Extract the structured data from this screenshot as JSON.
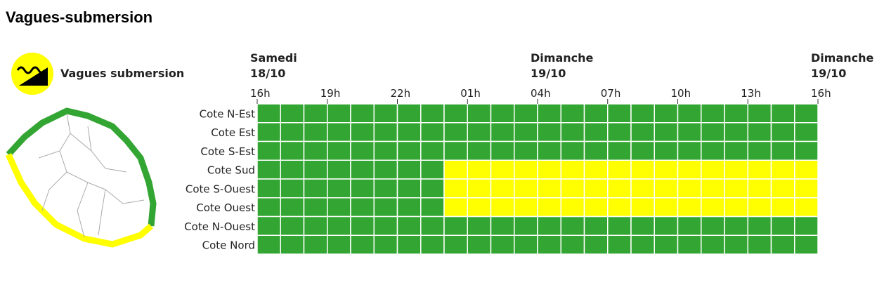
{
  "title": "Vagues-submersion",
  "legend_label": "Vagues submersion",
  "days": [
    {
      "name": "Samedi",
      "date": "18/10",
      "column": 0
    },
    {
      "name": "Dimanche",
      "date": "19/10",
      "column": 12
    },
    {
      "name": "Dimanche",
      "date": "19/10",
      "column": 24
    }
  ],
  "hours": [
    "16h",
    "19h",
    "22h",
    "01h",
    "04h",
    "07h",
    "10h",
    "13h",
    "16h"
  ],
  "hour_step": 3,
  "rows": [
    {
      "label": "Cote N-Est",
      "cells": [
        "#33a532",
        "#33a532",
        "#33a532",
        "#33a532",
        "#33a532",
        "#33a532",
        "#33a532",
        "#33a532",
        "#33a532",
        "#33a532",
        "#33a532",
        "#33a532",
        "#33a532",
        "#33a532",
        "#33a532",
        "#33a532",
        "#33a532",
        "#33a532",
        "#33a532",
        "#33a532",
        "#33a532",
        "#33a532",
        "#33a532",
        "#33a532"
      ]
    },
    {
      "label": "Cote Est",
      "cells": [
        "#33a532",
        "#33a532",
        "#33a532",
        "#33a532",
        "#33a532",
        "#33a532",
        "#33a532",
        "#33a532",
        "#33a532",
        "#33a532",
        "#33a532",
        "#33a532",
        "#33a532",
        "#33a532",
        "#33a532",
        "#33a532",
        "#33a532",
        "#33a532",
        "#33a532",
        "#33a532",
        "#33a532",
        "#33a532",
        "#33a532",
        "#33a532"
      ]
    },
    {
      "label": "Cote S-Est",
      "cells": [
        "#33a532",
        "#33a532",
        "#33a532",
        "#33a532",
        "#33a532",
        "#33a532",
        "#33a532",
        "#33a532",
        "#33a532",
        "#33a532",
        "#33a532",
        "#33a532",
        "#33a532",
        "#33a532",
        "#33a532",
        "#33a532",
        "#33a532",
        "#33a532",
        "#33a532",
        "#33a532",
        "#33a532",
        "#33a532",
        "#33a532",
        "#33a532"
      ]
    },
    {
      "label": "Cote Sud",
      "cells": [
        "#33a532",
        "#33a532",
        "#33a532",
        "#33a532",
        "#33a532",
        "#33a532",
        "#33a532",
        "#33a532",
        "#ffff00",
        "#ffff00",
        "#ffff00",
        "#ffff00",
        "#ffff00",
        "#ffff00",
        "#ffff00",
        "#ffff00",
        "#ffff00",
        "#ffff00",
        "#ffff00",
        "#ffff00",
        "#ffff00",
        "#ffff00",
        "#ffff00",
        "#ffff00"
      ]
    },
    {
      "label": "Cote S-Ouest",
      "cells": [
        "#33a532",
        "#33a532",
        "#33a532",
        "#33a532",
        "#33a532",
        "#33a532",
        "#33a532",
        "#33a532",
        "#ffff00",
        "#ffff00",
        "#ffff00",
        "#ffff00",
        "#ffff00",
        "#ffff00",
        "#ffff00",
        "#ffff00",
        "#ffff00",
        "#ffff00",
        "#ffff00",
        "#ffff00",
        "#ffff00",
        "#ffff00",
        "#ffff00",
        "#ffff00"
      ]
    },
    {
      "label": "Cote Ouest",
      "cells": [
        "#33a532",
        "#33a532",
        "#33a532",
        "#33a532",
        "#33a532",
        "#33a532",
        "#33a532",
        "#33a532",
        "#ffff00",
        "#ffff00",
        "#ffff00",
        "#ffff00",
        "#ffff00",
        "#ffff00",
        "#ffff00",
        "#ffff00",
        "#ffff00",
        "#ffff00",
        "#ffff00",
        "#ffff00",
        "#ffff00",
        "#ffff00",
        "#ffff00",
        "#ffff00"
      ]
    },
    {
      "label": "Cote N-Ouest",
      "cells": [
        "#33a532",
        "#33a532",
        "#33a532",
        "#33a532",
        "#33a532",
        "#33a532",
        "#33a532",
        "#33a532",
        "#33a532",
        "#33a532",
        "#33a532",
        "#33a532",
        "#33a532",
        "#33a532",
        "#33a532",
        "#33a532",
        "#33a532",
        "#33a532",
        "#33a532",
        "#33a532",
        "#33a532",
        "#33a532",
        "#33a532",
        "#33a532"
      ]
    },
    {
      "label": "Cote Nord",
      "cells": [
        "#33a532",
        "#33a532",
        "#33a532",
        "#33a532",
        "#33a532",
        "#33a532",
        "#33a532",
        "#33a532",
        "#33a532",
        "#33a532",
        "#33a532",
        "#33a532",
        "#33a532",
        "#33a532",
        "#33a532",
        "#33a532",
        "#33a532",
        "#33a532",
        "#33a532",
        "#33a532",
        "#33a532",
        "#33a532",
        "#33a532",
        "#33a532"
      ]
    }
  ]
}
